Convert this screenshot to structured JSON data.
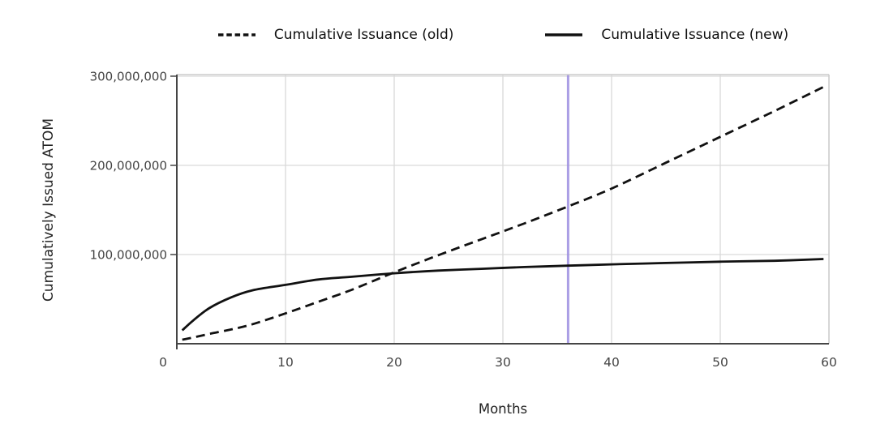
{
  "colors": {
    "series_line": "#111111",
    "grid": "#d9d9d9",
    "axis_dark": "#454545",
    "border_light": "#cccccc",
    "tick_text": "#444444",
    "vline": "#9b8de0"
  },
  "chart_data": {
    "type": "line",
    "title": "",
    "xlabel": "Months",
    "ylabel": "Cumulatively Issued ATOM",
    "x_ticks": [
      0,
      10,
      20,
      30,
      40,
      50,
      60
    ],
    "y_ticks": [
      {
        "value": 100000000,
        "label": "100,000,000"
      },
      {
        "value": 200000000,
        "label": "200,000,000"
      },
      {
        "value": 300000000,
        "label": "300,000,000"
      }
    ],
    "xlim": [
      0,
      60
    ],
    "ylim": [
      0,
      301800000
    ],
    "grid": true,
    "legend_position": "top-center",
    "vline": {
      "x": 36,
      "color": "#9b8de0"
    },
    "series": [
      {
        "name": "Cumulative Issuance (old)",
        "line_style": "dashed",
        "color": "#111111",
        "x": [
          0.5,
          1.5,
          3,
          5,
          7,
          10,
          13,
          16,
          20,
          24,
          28,
          32,
          36,
          40,
          45,
          50,
          55,
          59.5
        ],
        "y": [
          4500000,
          7000000,
          11000000,
          16000000,
          22000000,
          34000000,
          47000000,
          60000000,
          80000000,
          99000000,
          117000000,
          135000000,
          154000000,
          174000000,
          203000000,
          232000000,
          261000000,
          288000000
        ]
      },
      {
        "name": "Cumulative Issuance (new)",
        "line_style": "solid",
        "color": "#111111",
        "x": [
          0.5,
          1.5,
          3,
          5,
          7,
          10,
          13,
          16,
          20,
          24,
          28,
          32,
          36,
          40,
          45,
          50,
          55,
          59.5
        ],
        "y": [
          15000000,
          26000000,
          40000000,
          52000000,
          60000000,
          66000000,
          72000000,
          75000000,
          79000000,
          82000000,
          84000000,
          86000000,
          87500000,
          89000000,
          90500000,
          92000000,
          93000000,
          95000000
        ]
      }
    ]
  }
}
